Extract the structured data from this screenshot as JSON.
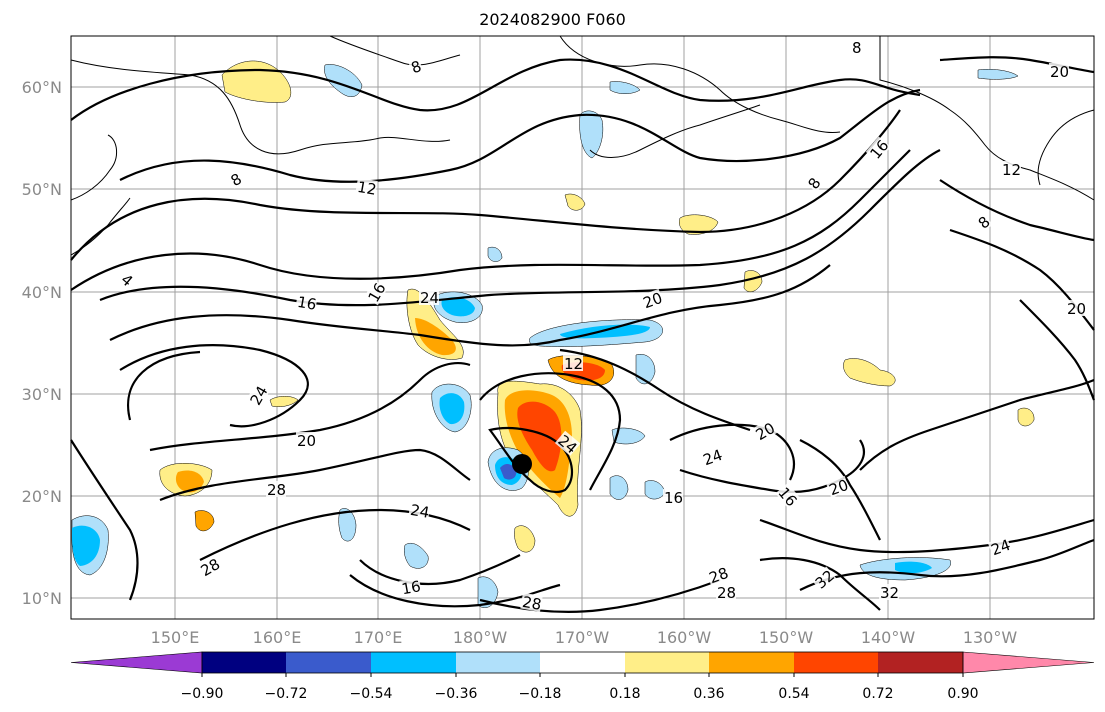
{
  "title": "2024082900 F060",
  "lat_labels": [
    "60°N",
    "50°N",
    "40°N",
    "30°N",
    "20°N",
    "10°N"
  ],
  "lon_labels": [
    "150°E",
    "160°E",
    "170°E",
    "180°W",
    "170°W",
    "160°W",
    "150°W",
    "140°W",
    "130°W"
  ],
  "colorbar": {
    "tick_labels": [
      "−0.90",
      "−0.72",
      "−0.54",
      "−0.36",
      "−0.18",
      "0.18",
      "0.36",
      "0.54",
      "0.72",
      "0.90"
    ],
    "colors": [
      "#9b3ad4",
      "#000080",
      "#3a5bcc",
      "#00bfff",
      "#b0e0fa",
      "#ffffff",
      "#ffee88",
      "#ffa500",
      "#ff4500",
      "#b22222",
      "#ff88aa"
    ]
  },
  "contour_labels": [
    "8",
    "8",
    "8",
    "8",
    "8",
    "12",
    "12",
    "12",
    "16",
    "16",
    "16",
    "16",
    "16",
    "16",
    "20",
    "20",
    "20",
    "20",
    "20",
    "20",
    "24",
    "24",
    "24",
    "24",
    "24",
    "24",
    "28",
    "28",
    "28",
    "28",
    "28",
    "32",
    "32",
    "4"
  ],
  "marker": "storm-center"
}
